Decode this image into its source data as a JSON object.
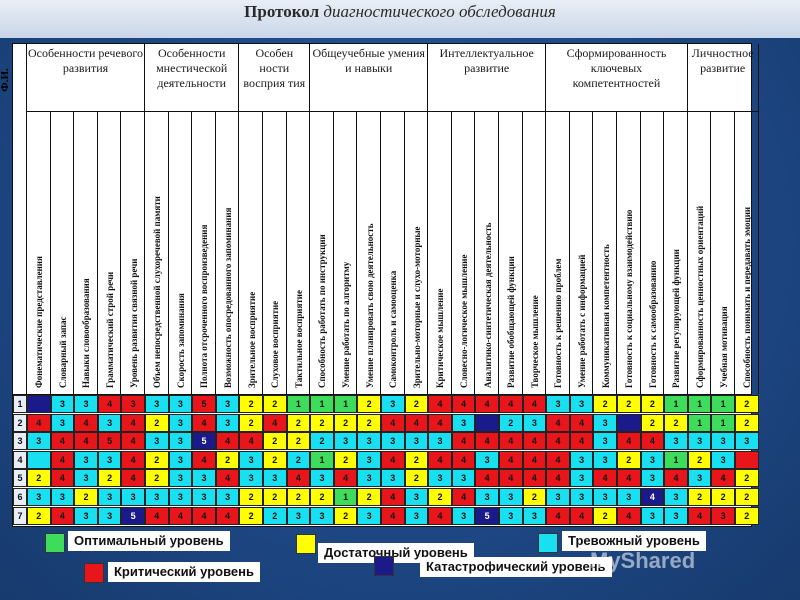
{
  "title_bold": "Протокол",
  "title_rest": "диагностического обследования",
  "fio_header": "Ф.И.",
  "groups": [
    {
      "label": "Особенности речевого развития"
    },
    {
      "label": "Особенности мнестической деятельности"
    },
    {
      "label": "Особен ности восприя тия"
    },
    {
      "label": "Общеучебные умения и навыки"
    },
    {
      "label": "Интеллектуальное развитие"
    },
    {
      "label": "Сформированность ключевых компетентностей"
    },
    {
      "label": "Личностное развитие"
    }
  ],
  "subheaders": [
    "Фонематические представления",
    "Словарный запас",
    "Навыки словообразования",
    "Грамматический строй речи",
    "Уровень развития связной речи",
    "Объем непосредственной слухоречевой памяти",
    "Скорость запоминания",
    "Полнота отсроченного воспроизведения",
    "Возможность опосредованного запоминания",
    "Зрительное восприятие",
    "Слуховое восприятие",
    "Тактильное восприятие",
    "Способность работать по инструкции",
    "Умение работать по алгоритму",
    "Умение планировать свою деятельность",
    "Самоконтроль и самооценка",
    "Зрительно-моторные и слухо-моторные",
    "Критическое мышление",
    "Словесно-логическое мышление",
    "Аналитико-синтетическая деятельность",
    "Развитие обобщающей функции",
    "Творческое мышление",
    "Готовность к решению проблем",
    "Умение работать с информацией",
    "Коммуникативная компетентность",
    "Готовность к социальному взаимодействию",
    "Готовность к самообразованию",
    "Развитие регулирующей функции",
    "Сформированность ценностных ориентаций",
    "Учебная мотивация",
    "Способность понимать и передавать эмоции"
  ],
  "colors": {
    "G": "#3ddc5a",
    "Y": "#ffff00",
    "C": "#19e0f0",
    "R": "#e8161a",
    "N": "#1a1a8a"
  },
  "rows": [
    {
      "num": "1",
      "cells": [
        [
          "N",
          ""
        ],
        [
          "C",
          "3"
        ],
        [
          "C",
          "3"
        ],
        [
          "R",
          "4"
        ],
        [
          "R",
          "3"
        ],
        [
          "C",
          "3"
        ],
        [
          "C",
          "3"
        ],
        [
          "R",
          "5"
        ],
        [
          "C",
          "3"
        ],
        [
          "Y",
          "2"
        ],
        [
          "Y",
          "2"
        ],
        [
          "G",
          "1"
        ],
        [
          "G",
          "1"
        ],
        [
          "G",
          "1"
        ],
        [
          "Y",
          "2"
        ],
        [
          "C",
          "3"
        ],
        [
          "Y",
          "2"
        ],
        [
          "R",
          "4"
        ],
        [
          "R",
          "4"
        ],
        [
          "R",
          "4"
        ],
        [
          "R",
          "4"
        ],
        [
          "R",
          "4"
        ],
        [
          "C",
          "3"
        ],
        [
          "C",
          "3"
        ],
        [
          "Y",
          "2"
        ],
        [
          "Y",
          "2"
        ],
        [
          "Y",
          "2"
        ],
        [
          "G",
          "1"
        ],
        [
          "G",
          "1"
        ],
        [
          "G",
          "1"
        ],
        [
          "Y",
          "2"
        ]
      ]
    },
    {
      "num": "2",
      "cells": [
        [
          "R",
          "4"
        ],
        [
          "C",
          "3"
        ],
        [
          "R",
          "4"
        ],
        [
          "C",
          "3"
        ],
        [
          "R",
          "4"
        ],
        [
          "Y",
          "2"
        ],
        [
          "C",
          "3"
        ],
        [
          "R",
          "4"
        ],
        [
          "C",
          "3"
        ],
        [
          "Y",
          "2"
        ],
        [
          "R",
          "4"
        ],
        [
          "Y",
          "2"
        ],
        [
          "Y",
          "2"
        ],
        [
          "Y",
          "2"
        ],
        [
          "Y",
          "2"
        ],
        [
          "R",
          "4"
        ],
        [
          "R",
          "4"
        ],
        [
          "R",
          "4"
        ],
        [
          "C",
          "3"
        ],
        [
          "N",
          ""
        ],
        [
          "C",
          "2"
        ],
        [
          "C",
          "3"
        ],
        [
          "R",
          "4"
        ],
        [
          "R",
          "4"
        ],
        [
          "C",
          "3"
        ],
        [
          "N",
          ""
        ],
        [
          "Y",
          "2"
        ],
        [
          "Y",
          "2"
        ],
        [
          "G",
          "1"
        ],
        [
          "G",
          "1"
        ],
        [
          "Y",
          "2"
        ]
      ]
    },
    {
      "num": "3",
      "cells": [
        [
          "C",
          "3"
        ],
        [
          "R",
          "4"
        ],
        [
          "R",
          "4"
        ],
        [
          "R",
          "5"
        ],
        [
          "R",
          "4"
        ],
        [
          "C",
          "3"
        ],
        [
          "C",
          "3"
        ],
        [
          "N",
          "5"
        ],
        [
          "R",
          "4"
        ],
        [
          "R",
          "4"
        ],
        [
          "Y",
          "2"
        ],
        [
          "Y",
          "2"
        ],
        [
          "C",
          "2"
        ],
        [
          "C",
          "3"
        ],
        [
          "C",
          "3"
        ],
        [
          "C",
          "3"
        ],
        [
          "C",
          "3"
        ],
        [
          "C",
          "3"
        ],
        [
          "R",
          "4"
        ],
        [
          "R",
          "4"
        ],
        [
          "R",
          "4"
        ],
        [
          "R",
          "4"
        ],
        [
          "R",
          "4"
        ],
        [
          "R",
          "4"
        ],
        [
          "C",
          "3"
        ],
        [
          "R",
          "4"
        ],
        [
          "R",
          "4"
        ],
        [
          "C",
          "3"
        ],
        [
          "C",
          "3"
        ],
        [
          "C",
          "3"
        ],
        [
          "C",
          "3"
        ]
      ]
    },
    {
      "num": "4",
      "cells": [
        [
          "C",
          ""
        ],
        [
          "R",
          "4"
        ],
        [
          "C",
          "3"
        ],
        [
          "C",
          "3"
        ],
        [
          "R",
          "4"
        ],
        [
          "Y",
          "2"
        ],
        [
          "C",
          "3"
        ],
        [
          "R",
          "4"
        ],
        [
          "Y",
          "2"
        ],
        [
          "C",
          "3"
        ],
        [
          "Y",
          "2"
        ],
        [
          "C",
          "2"
        ],
        [
          "G",
          "1"
        ],
        [
          "Y",
          "2"
        ],
        [
          "C",
          "3"
        ],
        [
          "R",
          "4"
        ],
        [
          "Y",
          "2"
        ],
        [
          "R",
          "4"
        ],
        [
          "R",
          "4"
        ],
        [
          "C",
          "3"
        ],
        [
          "R",
          "4"
        ],
        [
          "R",
          "4"
        ],
        [
          "R",
          "4"
        ],
        [
          "C",
          "3"
        ],
        [
          "C",
          "3"
        ],
        [
          "Y",
          "2"
        ],
        [
          "C",
          "3"
        ],
        [
          "G",
          "1"
        ],
        [
          "Y",
          "2"
        ],
        [
          "C",
          "3"
        ],
        [
          "R",
          ""
        ]
      ]
    },
    {
      "num": "5",
      "cells": [
        [
          "Y",
          "2"
        ],
        [
          "R",
          "4"
        ],
        [
          "C",
          "3"
        ],
        [
          "Y",
          "2"
        ],
        [
          "R",
          "4"
        ],
        [
          "Y",
          "2"
        ],
        [
          "C",
          "3"
        ],
        [
          "C",
          "3"
        ],
        [
          "R",
          "4"
        ],
        [
          "C",
          "3"
        ],
        [
          "C",
          "3"
        ],
        [
          "R",
          "4"
        ],
        [
          "C",
          "3"
        ],
        [
          "R",
          "4"
        ],
        [
          "C",
          "3"
        ],
        [
          "C",
          "3"
        ],
        [
          "Y",
          "2"
        ],
        [
          "C",
          "3"
        ],
        [
          "C",
          "3"
        ],
        [
          "R",
          "4"
        ],
        [
          "R",
          "4"
        ],
        [
          "R",
          "4"
        ],
        [
          "R",
          "4"
        ],
        [
          "C",
          "3"
        ],
        [
          "R",
          "4"
        ],
        [
          "R",
          "4"
        ],
        [
          "C",
          "3"
        ],
        [
          "R",
          "4"
        ],
        [
          "C",
          "3"
        ],
        [
          "R",
          "4"
        ],
        [
          "Y",
          "2"
        ]
      ]
    },
    {
      "num": "6",
      "cells": [
        [
          "C",
          "3"
        ],
        [
          "C",
          "3"
        ],
        [
          "Y",
          "2"
        ],
        [
          "C",
          "3"
        ],
        [
          "C",
          "3"
        ],
        [
          "C",
          "3"
        ],
        [
          "C",
          "3"
        ],
        [
          "C",
          "3"
        ],
        [
          "C",
          "3"
        ],
        [
          "Y",
          "2"
        ],
        [
          "Y",
          "2"
        ],
        [
          "Y",
          "2"
        ],
        [
          "Y",
          "2"
        ],
        [
          "G",
          "1"
        ],
        [
          "Y",
          "2"
        ],
        [
          "R",
          "4"
        ],
        [
          "C",
          "3"
        ],
        [
          "Y",
          "2"
        ],
        [
          "R",
          "4"
        ],
        [
          "C",
          "3"
        ],
        [
          "C",
          "3"
        ],
        [
          "Y",
          "2"
        ],
        [
          "C",
          "3"
        ],
        [
          "C",
          "3"
        ],
        [
          "C",
          "3"
        ],
        [
          "C",
          "3"
        ],
        [
          "N",
          "4"
        ],
        [
          "C",
          "3"
        ],
        [
          "Y",
          "2"
        ],
        [
          "Y",
          "2"
        ],
        [
          "Y",
          "2"
        ]
      ]
    },
    {
      "num": "7",
      "cells": [
        [
          "Y",
          "2"
        ],
        [
          "R",
          "4"
        ],
        [
          "C",
          "3"
        ],
        [
          "C",
          "3"
        ],
        [
          "N",
          "5"
        ],
        [
          "R",
          "4"
        ],
        [
          "R",
          "4"
        ],
        [
          "R",
          "4"
        ],
        [
          "R",
          "4"
        ],
        [
          "Y",
          "2"
        ],
        [
          "C",
          "2"
        ],
        [
          "C",
          "3"
        ],
        [
          "C",
          "3"
        ],
        [
          "Y",
          "2"
        ],
        [
          "C",
          "3"
        ],
        [
          "R",
          "4"
        ],
        [
          "C",
          "3"
        ],
        [
          "R",
          "4"
        ],
        [
          "C",
          "3"
        ],
        [
          "N",
          "5"
        ],
        [
          "C",
          "3"
        ],
        [
          "C",
          "3"
        ],
        [
          "R",
          "4"
        ],
        [
          "R",
          "4"
        ],
        [
          "Y",
          "2"
        ],
        [
          "R",
          "4"
        ],
        [
          "C",
          "3"
        ],
        [
          "C",
          "3"
        ],
        [
          "R",
          "4"
        ],
        [
          "R",
          "3"
        ],
        [
          "Y",
          "2"
        ]
      ]
    }
  ],
  "legend": [
    {
      "key": "G",
      "label": "Оптимальный уровень"
    },
    {
      "key": "Y",
      "label": "Достаточный уровень"
    },
    {
      "key": "C",
      "label": "Тревожный уровень"
    },
    {
      "key": "R",
      "label": "Критический уровень"
    },
    {
      "key": "N",
      "label": "Катастрофический уровень"
    }
  ],
  "watermark": "MyShared"
}
